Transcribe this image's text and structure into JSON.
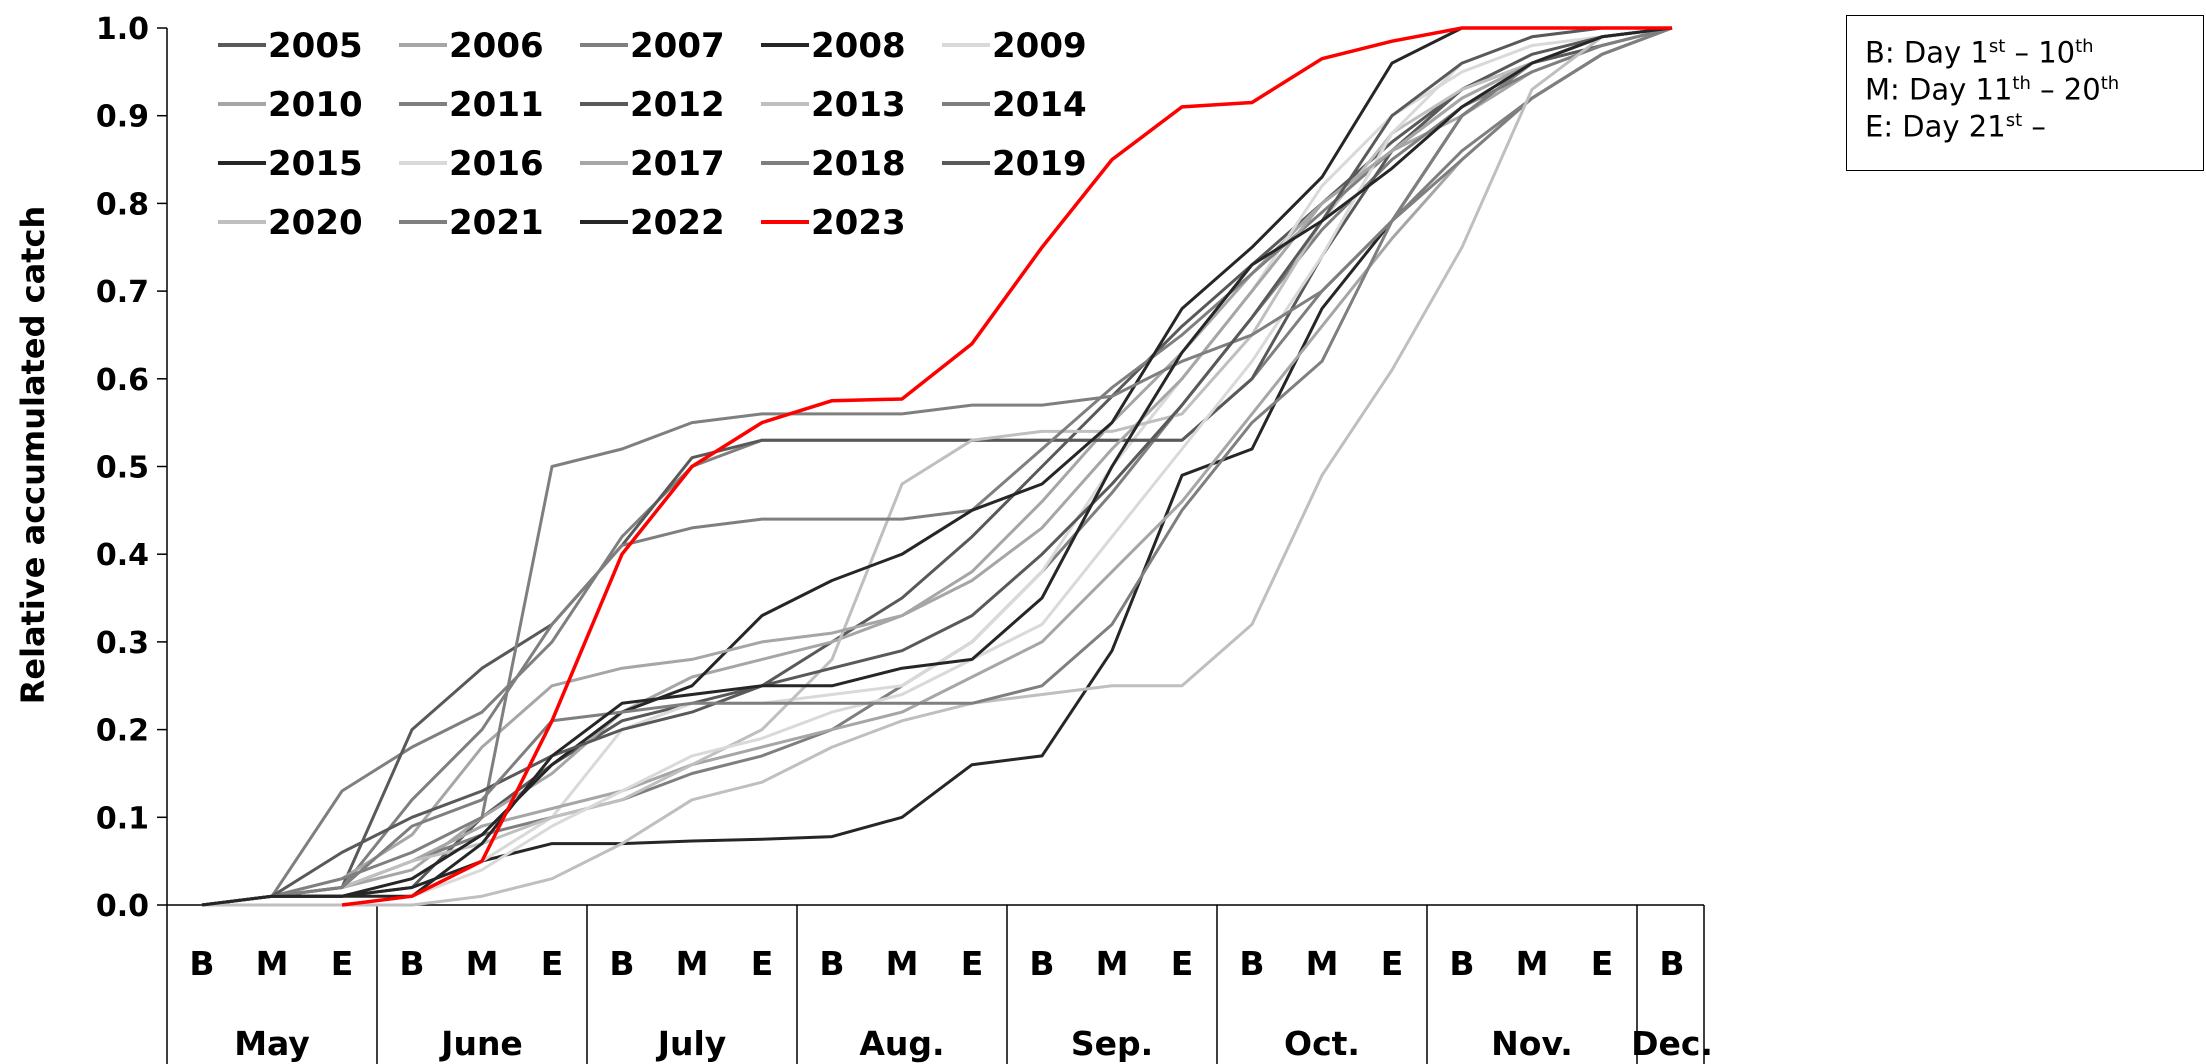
{
  "chart_data": {
    "type": "line",
    "ylabel": "Relative accumulated catch",
    "ylim": [
      0,
      1
    ],
    "yticks": [
      "0.0",
      "0.1",
      "0.2",
      "0.3",
      "0.4",
      "0.5",
      "0.6",
      "0.7",
      "0.8",
      "0.9",
      "1.0"
    ],
    "periods": [
      "B",
      "M",
      "E",
      "B",
      "M",
      "E",
      "B",
      "M",
      "E",
      "B",
      "M",
      "E",
      "B",
      "M",
      "E",
      "B",
      "M",
      "E",
      "B",
      "M",
      "E",
      "B"
    ],
    "months": [
      "May",
      "June",
      "July",
      "Aug.",
      "Sep.",
      "Oct.",
      "Nov.",
      "Dec."
    ],
    "legend_position": "top-left",
    "series": [
      {
        "name": "2005",
        "color": "#595959",
        "values": [
          0,
          0.01,
          0.01,
          0.02,
          0.1,
          0.16,
          0.21,
          0.23,
          0.25,
          0.3,
          0.35,
          0.42,
          0.5,
          0.58,
          0.66,
          0.73,
          0.8,
          0.87,
          0.93,
          0.96,
          0.98,
          1.0
        ]
      },
      {
        "name": "2006",
        "color": "#a6a6a6",
        "values": [
          0,
          0.01,
          0.02,
          0.04,
          0.1,
          0.15,
          0.22,
          0.26,
          0.28,
          0.3,
          0.33,
          0.38,
          0.46,
          0.55,
          0.63,
          0.72,
          0.8,
          0.86,
          0.9,
          0.95,
          0.98,
          1.0
        ]
      },
      {
        "name": "2007",
        "color": "#7f7f7f",
        "values": [
          0,
          0.01,
          0.02,
          0.05,
          0.08,
          0.1,
          0.12,
          0.15,
          0.17,
          0.2,
          0.25,
          0.3,
          0.38,
          0.47,
          0.57,
          0.67,
          0.77,
          0.85,
          0.91,
          0.95,
          0.98,
          1.0
        ]
      },
      {
        "name": "2008",
        "color": "#262626",
        "values": [
          0,
          0.01,
          0.01,
          0.02,
          0.05,
          0.07,
          0.07,
          0.073,
          0.075,
          0.078,
          0.1,
          0.16,
          0.17,
          0.29,
          0.49,
          0.52,
          0.68,
          0.78,
          0.9,
          0.96,
          0.99,
          1.0
        ]
      },
      {
        "name": "2009",
        "color": "#d9d9d9",
        "values": [
          0,
          0,
          0,
          0.01,
          0.05,
          0.1,
          0.2,
          0.23,
          0.23,
          0.24,
          0.25,
          0.3,
          0.38,
          0.5,
          0.6,
          0.7,
          0.82,
          0.9,
          0.95,
          0.98,
          0.99,
          1.0
        ]
      },
      {
        "name": "2010",
        "color": "#a6a6a6",
        "values": [
          0,
          0.01,
          0.02,
          0.05,
          0.09,
          0.11,
          0.13,
          0.16,
          0.18,
          0.2,
          0.22,
          0.26,
          0.3,
          0.38,
          0.46,
          0.56,
          0.66,
          0.76,
          0.85,
          0.92,
          0.97,
          1.0
        ]
      },
      {
        "name": "2011",
        "color": "#7f7f7f",
        "values": [
          0,
          0.01,
          0.13,
          0.18,
          0.22,
          0.3,
          0.42,
          0.5,
          0.53,
          0.53,
          0.53,
          0.53,
          0.53,
          0.53,
          0.53,
          0.6,
          0.7,
          0.78,
          0.86,
          0.92,
          0.97,
          1.0
        ]
      },
      {
        "name": "2012",
        "color": "#595959",
        "values": [
          0,
          0.01,
          0.02,
          0.2,
          0.27,
          0.32,
          0.41,
          0.51,
          0.53,
          0.53,
          0.53,
          0.53,
          0.53,
          0.53,
          0.53,
          0.6,
          0.74,
          0.86,
          0.93,
          0.97,
          0.99,
          1.0
        ]
      },
      {
        "name": "2013",
        "color": "#bfbfbf",
        "values": [
          0,
          0.01,
          0.02,
          0.05,
          0.07,
          0.1,
          0.12,
          0.16,
          0.2,
          0.28,
          0.48,
          0.53,
          0.54,
          0.54,
          0.56,
          0.65,
          0.78,
          0.88,
          0.93,
          0.96,
          0.99,
          1.0
        ]
      },
      {
        "name": "2014",
        "color": "#7f7f7f",
        "values": [
          0,
          0.01,
          0.02,
          0.12,
          0.2,
          0.32,
          0.41,
          0.43,
          0.44,
          0.44,
          0.44,
          0.45,
          0.52,
          0.59,
          0.65,
          0.72,
          0.79,
          0.86,
          0.92,
          0.96,
          0.99,
          1.0
        ]
      },
      {
        "name": "2015",
        "color": "#262626",
        "values": [
          0,
          0.01,
          0.01,
          0.03,
          0.08,
          0.16,
          0.22,
          0.25,
          0.33,
          0.37,
          0.4,
          0.45,
          0.48,
          0.55,
          0.68,
          0.75,
          0.83,
          0.96,
          1.0,
          1.0,
          1.0,
          1.0
        ]
      },
      {
        "name": "2016",
        "color": "#d9d9d9",
        "values": [
          0,
          0,
          0,
          0.01,
          0.04,
          0.09,
          0.13,
          0.17,
          0.19,
          0.22,
          0.24,
          0.28,
          0.32,
          0.42,
          0.52,
          0.62,
          0.74,
          0.88,
          0.96,
          0.99,
          1.0,
          1.0
        ]
      },
      {
        "name": "2017",
        "color": "#a6a6a6",
        "values": [
          0,
          0.01,
          0.03,
          0.08,
          0.18,
          0.25,
          0.27,
          0.28,
          0.3,
          0.31,
          0.33,
          0.37,
          0.43,
          0.52,
          0.6,
          0.7,
          0.8,
          0.86,
          0.92,
          0.96,
          0.99,
          1.0
        ]
      },
      {
        "name": "2018",
        "color": "#7f7f7f",
        "values": [
          0,
          0.01,
          0.03,
          0.06,
          0.1,
          0.5,
          0.52,
          0.55,
          0.56,
          0.56,
          0.56,
          0.57,
          0.57,
          0.58,
          0.62,
          0.65,
          0.7,
          0.78,
          0.85,
          0.92,
          0.97,
          1.0
        ]
      },
      {
        "name": "2019",
        "color": "#595959",
        "values": [
          0,
          0.01,
          0.06,
          0.1,
          0.13,
          0.17,
          0.2,
          0.22,
          0.25,
          0.27,
          0.29,
          0.33,
          0.4,
          0.48,
          0.57,
          0.67,
          0.78,
          0.9,
          0.96,
          0.99,
          1.0,
          1.0
        ]
      },
      {
        "name": "2020",
        "color": "#bfbfbf",
        "values": [
          0,
          0,
          0,
          0,
          0.01,
          0.03,
          0.07,
          0.12,
          0.14,
          0.18,
          0.21,
          0.23,
          0.24,
          0.25,
          0.25,
          0.32,
          0.49,
          0.61,
          0.75,
          0.93,
          0.99,
          1.0
        ]
      },
      {
        "name": "2021",
        "color": "#7f7f7f",
        "values": [
          0,
          0.01,
          0.02,
          0.09,
          0.12,
          0.21,
          0.22,
          0.23,
          0.23,
          0.23,
          0.23,
          0.23,
          0.25,
          0.32,
          0.45,
          0.55,
          0.62,
          0.78,
          0.9,
          0.96,
          0.99,
          1.0
        ]
      },
      {
        "name": "2022",
        "color": "#262626",
        "values": [
          0,
          0.01,
          0.01,
          0.01,
          0.07,
          0.17,
          0.23,
          0.24,
          0.25,
          0.25,
          0.27,
          0.28,
          0.35,
          0.5,
          0.63,
          0.73,
          0.78,
          0.84,
          0.91,
          0.96,
          0.99,
          1.0
        ]
      },
      {
        "name": "2023",
        "color": "#ff0000",
        "values": [
          null,
          null,
          0,
          0.01,
          0.05,
          0.21,
          0.4,
          0.5,
          0.55,
          0.575,
          0.577,
          0.64,
          0.75,
          0.85,
          0.91,
          0.915,
          0.965,
          0.985,
          1.0,
          1.0,
          1.0,
          1.0
        ]
      }
    ]
  },
  "note": {
    "lines": [
      {
        "text": "B: Day 1",
        "sup1": "st",
        "mid": " – 10",
        "sup2": "th"
      },
      {
        "text": "M: Day 11",
        "sup1": "th",
        "mid": " – 20",
        "sup2": "th"
      },
      {
        "text": "E: Day 21",
        "sup1": "st",
        "mid": " –",
        "sup2": ""
      }
    ]
  }
}
